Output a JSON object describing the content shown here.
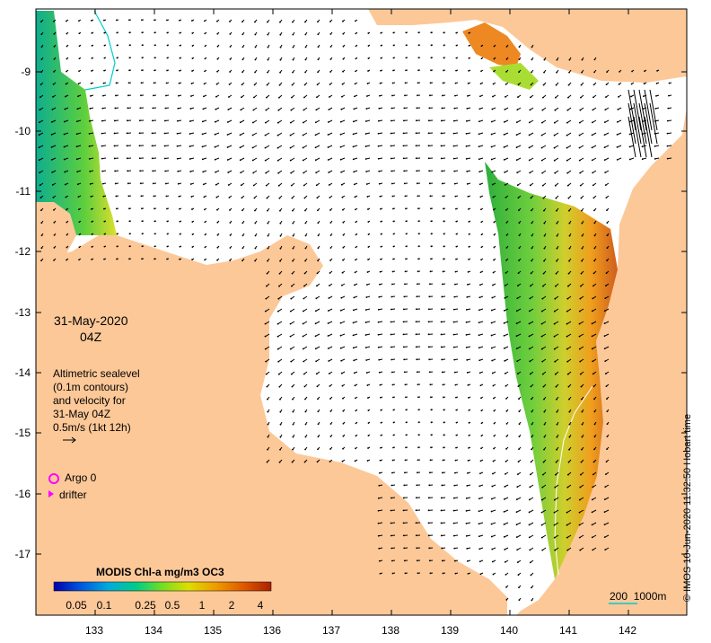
{
  "date_label": "31-May-2020",
  "time_label": "04Z",
  "legend": {
    "line1": "Altimetric sealevel",
    "line2": "(0.1m contours)",
    "line3": "and velocity for",
    "line4": "31-May 04Z",
    "scale_label": "0.5m/s (1kt 12h)"
  },
  "markers": {
    "argo_label": "Argo 0",
    "drifter_label": "drifter"
  },
  "colorbar": {
    "title": "MODIS Chl-a mg/m3 OC3",
    "ticks": [
      "0.05",
      "0.1",
      "0.25",
      "0.5",
      "1",
      "2",
      "4"
    ],
    "colors": [
      "#0000aa",
      "#0055dd",
      "#00aadd",
      "#00cc88",
      "#77dd22",
      "#dddd00",
      "#ee9900",
      "#dd5500",
      "#aa2200"
    ]
  },
  "contour_label": "200  1000m",
  "credit": "© IMOS 10-Jun-2020 11:32:50 Hobart time",
  "x_axis": {
    "ticks": [
      "133",
      "134",
      "135",
      "136",
      "137",
      "138",
      "139",
      "140",
      "141",
      "142"
    ]
  },
  "y_axis": {
    "ticks": [
      "-9",
      "-10",
      "-11",
      "-12",
      "-13",
      "-14",
      "-15",
      "-16",
      "-17"
    ]
  },
  "colors": {
    "land": "#fcc898",
    "sea": "#ffffff",
    "contour": "#00cccc"
  }
}
